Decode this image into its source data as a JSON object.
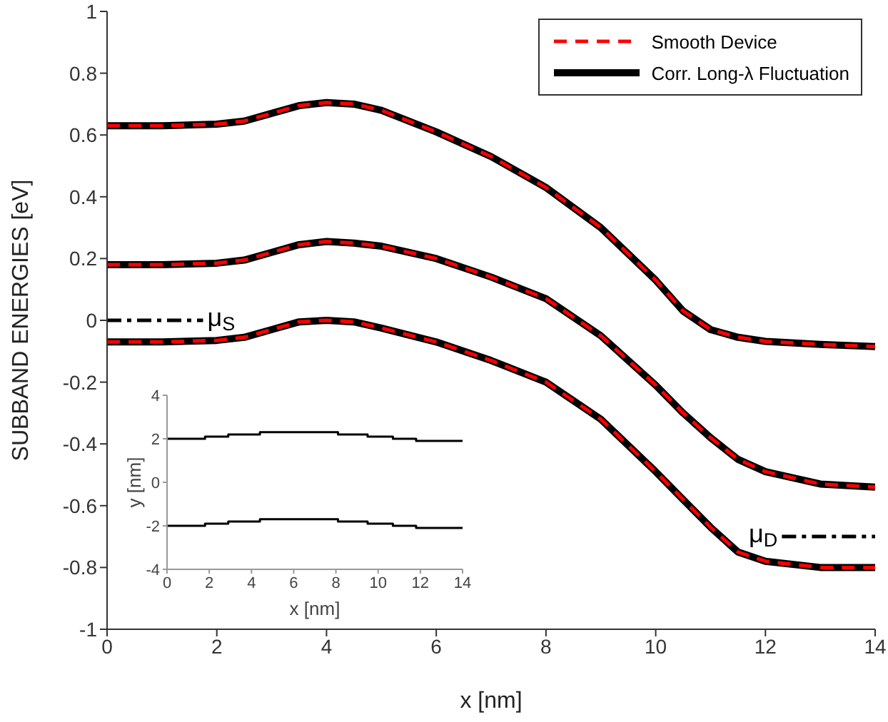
{
  "chart_data": [
    {
      "type": "line",
      "xlabel": "x [nm]",
      "ylabel": "SUBBAND ENERGIES [eV]",
      "xlim": [
        0,
        14
      ],
      "ylim": [
        -1,
        1
      ],
      "xticks": [
        0,
        2,
        4,
        6,
        8,
        10,
        12,
        14
      ],
      "yticks": [
        -1,
        -0.8,
        -0.6,
        -0.4,
        -0.2,
        0,
        0.2,
        0.4,
        0.6,
        0.8,
        1
      ],
      "grid": false,
      "legend": "top right",
      "marker": "none",
      "annotations": [
        {
          "text": "μ$_{S}$",
          "x": 1.75,
          "y": 0
        },
        {
          "text": "μ$_{D}$",
          "x": 12.3,
          "y": -0.7
        }
      ],
      "series": [
        {
          "color": "#000000",
          "line_style": "solid",
          "x": [
            0,
            1,
            2,
            2.5,
            3,
            3.5,
            4,
            4.5,
            5,
            6,
            7,
            8,
            9,
            10,
            10.5,
            11,
            11.5,
            12,
            13,
            14
          ],
          "values": [
            0.63,
            0.63,
            0.635,
            0.645,
            0.67,
            0.695,
            0.705,
            0.7,
            0.68,
            0.61,
            0.53,
            0.43,
            0.3,
            0.13,
            0.03,
            -0.03,
            -0.055,
            -0.068,
            -0.078,
            -0.085
          ]
        },
        {
          "color": "#000000",
          "line_style": "solid",
          "x": [
            0,
            1,
            2,
            2.5,
            3,
            3.5,
            4,
            4.5,
            5,
            6,
            7,
            8,
            9,
            10,
            10.5,
            11,
            11.5,
            12,
            13,
            14
          ],
          "values": [
            0.18,
            0.18,
            0.185,
            0.195,
            0.22,
            0.245,
            0.255,
            0.25,
            0.24,
            0.2,
            0.14,
            0.07,
            -0.05,
            -0.21,
            -0.3,
            -0.38,
            -0.45,
            -0.49,
            -0.53,
            -0.54
          ]
        },
        {
          "name": "Smooth Device",
          "color": "#ff0000",
          "line_style": "dashed",
          "x": [
            0,
            1,
            2,
            2.5,
            3,
            3.5,
            4,
            4.5,
            5,
            6,
            7,
            8,
            9,
            10,
            10.5,
            11,
            11.5,
            12,
            13,
            14
          ],
          "values": [
            0.63,
            0.63,
            0.635,
            0.645,
            0.67,
            0.695,
            0.705,
            0.7,
            0.68,
            0.61,
            0.53,
            0.43,
            0.3,
            0.13,
            0.03,
            -0.03,
            -0.055,
            -0.068,
            -0.078,
            -0.085
          ]
        },
        {
          "name": "Corr. Long-λ Fluctuation",
          "color": "#000000",
          "line_style": "solid",
          "x": [
            0,
            1,
            2,
            2.5,
            3,
            3.5,
            4,
            4.5,
            5,
            6,
            7,
            8,
            9,
            10,
            10.5,
            11,
            11.5,
            12,
            13,
            14
          ],
          "values": [
            -0.07,
            -0.07,
            -0.065,
            -0.055,
            -0.03,
            -0.005,
            0,
            -0.005,
            -0.025,
            -0.07,
            -0.13,
            -0.2,
            -0.32,
            -0.49,
            -0.58,
            -0.67,
            -0.75,
            -0.78,
            -0.8,
            -0.8
          ]
        },
        {
          "color": "#ff0000",
          "line_style": "dashed",
          "x": [
            0,
            1,
            2,
            2.5,
            3,
            3.5,
            4,
            4.5,
            5,
            6,
            7,
            8,
            9,
            10,
            10.5,
            11,
            11.5,
            12,
            13,
            14
          ],
          "values": [
            0.18,
            0.18,
            0.185,
            0.195,
            0.22,
            0.245,
            0.255,
            0.25,
            0.24,
            0.2,
            0.14,
            0.07,
            -0.05,
            -0.21,
            -0.3,
            -0.38,
            -0.45,
            -0.49,
            -0.53,
            -0.54
          ]
        },
        {
          "color": "#ff0000",
          "line_style": "dashed",
          "x": [
            0,
            1,
            2,
            2.5,
            3,
            3.5,
            4,
            4.5,
            5,
            6,
            7,
            8,
            9,
            10,
            10.5,
            11,
            11.5,
            12,
            13,
            14
          ],
          "values": [
            -0.07,
            -0.07,
            -0.065,
            -0.055,
            -0.03,
            -0.005,
            0,
            -0.005,
            -0.025,
            -0.07,
            -0.13,
            -0.2,
            -0.32,
            -0.49,
            -0.58,
            -0.67,
            -0.75,
            -0.78,
            -0.8,
            -0.8
          ]
        },
        {
          "color": "#000000",
          "line_style": "dashdot",
          "x": [
            0,
            1.75
          ],
          "values": [
            0,
            0
          ]
        },
        {
          "color": "#000000",
          "line_style": "dashdot",
          "x": [
            12.3,
            14
          ],
          "values": [
            -0.7,
            -0.7
          ]
        }
      ]
    },
    {
      "type": "step",
      "xlabel": "x [nm]",
      "ylabel": "y [nm]",
      "xlim": [
        0,
        14
      ],
      "ylim": [
        -4,
        4
      ],
      "xticks": [
        0,
        2,
        4,
        6,
        8,
        10,
        12,
        14
      ],
      "yticks": [
        -4,
        -2,
        0,
        2,
        4
      ],
      "grid": false,
      "legend": false,
      "marker": "none",
      "series": [
        {
          "color": "#000000",
          "line_style": "solid",
          "x": [
            0,
            1.8,
            2.9,
            4.4,
            8.1,
            9.5,
            10.7,
            11.8,
            14
          ],
          "values": [
            2,
            2.1,
            2.2,
            2.3,
            2.2,
            2.1,
            2,
            1.9,
            1.9
          ]
        },
        {
          "color": "#000000",
          "line_style": "solid",
          "x": [
            0,
            1.8,
            2.9,
            4.4,
            8.1,
            9.5,
            10.7,
            11.8,
            14
          ],
          "values": [
            -2,
            -1.9,
            -1.8,
            -1.7,
            -1.8,
            -1.9,
            -2,
            -2.1,
            -2.1
          ]
        }
      ]
    }
  ]
}
